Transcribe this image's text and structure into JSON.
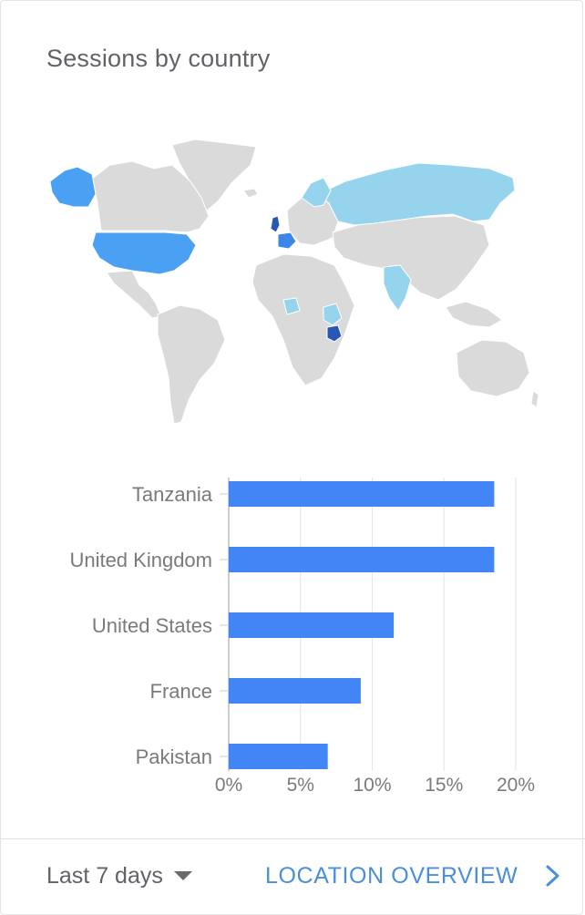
{
  "card": {
    "title": "Sessions by country"
  },
  "map": {
    "land_color": "#dadada",
    "highlight_colors": {
      "strongest": "#2a57b6",
      "strong": "#3b86e8",
      "medium": "#4aa0f2",
      "light": "#96d3ec"
    }
  },
  "chart_data": {
    "type": "bar",
    "orientation": "horizontal",
    "categories": [
      "Tanzania",
      "United Kingdom",
      "United States",
      "France",
      "Pakistan"
    ],
    "values": [
      18.5,
      18.5,
      11.5,
      9.2,
      6.9
    ],
    "unit": "%",
    "xlim": [
      0,
      20
    ],
    "xticks": [
      "0%",
      "5%",
      "10%",
      "15%",
      "20%"
    ],
    "grid": true,
    "bar_color": "#4285f4"
  },
  "footer": {
    "range_label": "Last 7 days",
    "link_label": "LOCATION OVERVIEW"
  }
}
